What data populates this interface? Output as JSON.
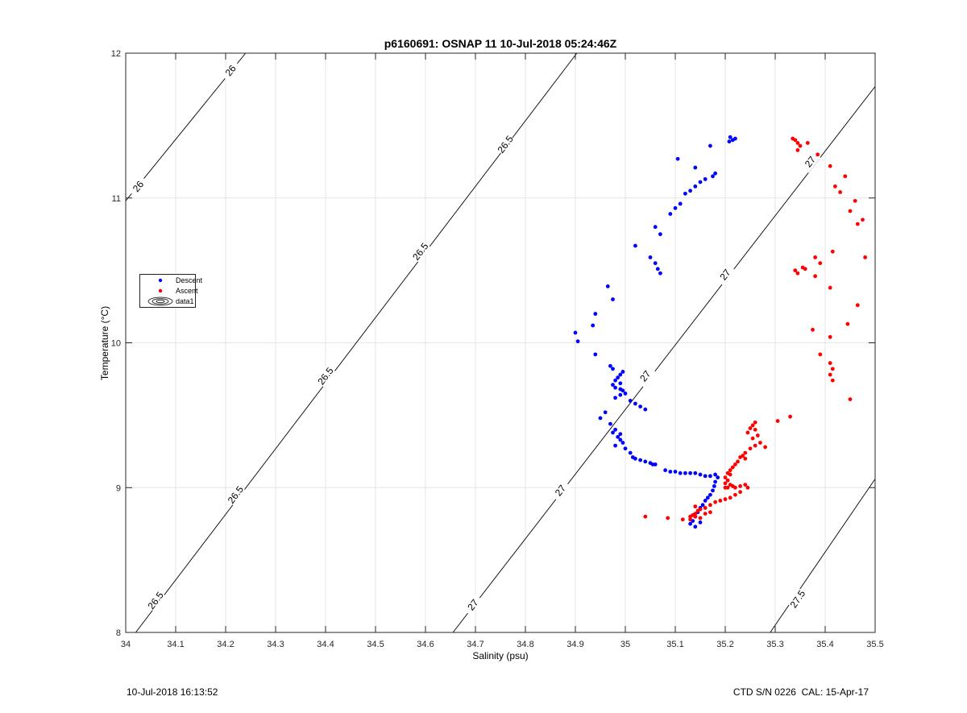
{
  "chart_data": {
    "type": "scatter",
    "title": "p6160691: OSNAP 11 10-Jul-2018 05:24:46Z",
    "xlabel": "Salinity (psu)",
    "ylabel": "Temperature (°C)",
    "xlim": [
      34,
      35.5
    ],
    "ylim": [
      8,
      12
    ],
    "xticks": [
      "34",
      "34.1",
      "34.2",
      "34.3",
      "34.4",
      "34.5",
      "34.6",
      "34.7",
      "34.8",
      "34.9",
      "35",
      "35.1",
      "35.2",
      "35.3",
      "35.4",
      "35.5"
    ],
    "yticks": [
      "8",
      "9",
      "10",
      "11",
      "12"
    ],
    "grid": true,
    "legend_placement": "middle-left",
    "colors": {
      "descent": "#0000ff",
      "ascent": "#ff0000",
      "contour": "#000000"
    },
    "legend": [
      "Descent",
      "Ascent",
      "data1"
    ],
    "contours": [
      {
        "label": "26",
        "points": [
          [
            34.0,
            10.98
          ],
          [
            34.24,
            12.0
          ]
        ],
        "labels_at": [
          [
            34.025,
            11.08
          ],
          [
            34.21,
            11.88
          ]
        ]
      },
      {
        "label": "26.5",
        "points": [
          [
            34.02,
            8.0
          ],
          [
            34.903,
            12.0
          ]
        ],
        "labels_at": [
          [
            34.06,
            8.22
          ],
          [
            34.22,
            8.95
          ],
          [
            34.4,
            9.77
          ],
          [
            34.59,
            10.63
          ],
          [
            34.76,
            11.37
          ]
        ]
      },
      {
        "label": "27",
        "points": [
          [
            34.655,
            8.0
          ],
          [
            35.5,
            11.77
          ]
        ],
        "labels_at": [
          [
            34.695,
            8.19
          ],
          [
            34.87,
            8.98
          ],
          [
            35.04,
            9.77
          ],
          [
            35.2,
            10.47
          ],
          [
            35.37,
            11.25
          ]
        ]
      },
      {
        "label": "27.5",
        "points": [
          [
            35.29,
            8.0
          ],
          [
            35.5,
            9.06
          ]
        ],
        "labels_at": [
          [
            35.345,
            8.23
          ]
        ]
      }
    ],
    "series": [
      {
        "name": "Descent",
        "points": [
          [
            35.21,
            11.42
          ],
          [
            35.22,
            11.41
          ],
          [
            35.215,
            11.4
          ],
          [
            35.208,
            11.39
          ],
          [
            35.105,
            11.27
          ],
          [
            35.17,
            11.36
          ],
          [
            35.14,
            11.21
          ],
          [
            35.18,
            11.17
          ],
          [
            35.175,
            11.15
          ],
          [
            35.16,
            11.13
          ],
          [
            35.15,
            11.11
          ],
          [
            35.14,
            11.08
          ],
          [
            35.13,
            11.05
          ],
          [
            35.12,
            11.03
          ],
          [
            35.11,
            10.96
          ],
          [
            35.1,
            10.93
          ],
          [
            35.09,
            10.89
          ],
          [
            35.06,
            10.8
          ],
          [
            35.07,
            10.75
          ],
          [
            35.02,
            10.67
          ],
          [
            35.05,
            10.59
          ],
          [
            35.06,
            10.55
          ],
          [
            35.065,
            10.51
          ],
          [
            35.07,
            10.48
          ],
          [
            34.965,
            10.39
          ],
          [
            34.975,
            10.3
          ],
          [
            34.94,
            10.2
          ],
          [
            34.935,
            10.12
          ],
          [
            34.9,
            10.07
          ],
          [
            34.905,
            10.01
          ],
          [
            34.94,
            9.92
          ],
          [
            34.97,
            9.84
          ],
          [
            34.975,
            9.82
          ],
          [
            34.995,
            9.8
          ],
          [
            34.99,
            9.78
          ],
          [
            34.985,
            9.76
          ],
          [
            34.98,
            9.74
          ],
          [
            34.99,
            9.72
          ],
          [
            34.975,
            9.71
          ],
          [
            34.98,
            9.69
          ],
          [
            34.99,
            9.68
          ],
          [
            34.995,
            9.67
          ],
          [
            35.0,
            9.65
          ],
          [
            34.99,
            9.64
          ],
          [
            34.98,
            9.62
          ],
          [
            35.01,
            9.6
          ],
          [
            35.02,
            9.58
          ],
          [
            35.03,
            9.56
          ],
          [
            35.04,
            9.54
          ],
          [
            34.96,
            9.52
          ],
          [
            34.95,
            9.48
          ],
          [
            34.97,
            9.44
          ],
          [
            34.98,
            9.4
          ],
          [
            34.975,
            9.38
          ],
          [
            34.99,
            9.37
          ],
          [
            34.985,
            9.35
          ],
          [
            34.99,
            9.33
          ],
          [
            34.995,
            9.31
          ],
          [
            34.98,
            9.29
          ],
          [
            35.0,
            9.27
          ],
          [
            35.01,
            9.24
          ],
          [
            35.015,
            9.21
          ],
          [
            35.02,
            9.2
          ],
          [
            35.03,
            9.19
          ],
          [
            35.04,
            9.18
          ],
          [
            35.05,
            9.17
          ],
          [
            35.055,
            9.16
          ],
          [
            35.06,
            9.16
          ],
          [
            35.08,
            9.12
          ],
          [
            35.09,
            9.11
          ],
          [
            35.1,
            9.11
          ],
          [
            35.11,
            9.1
          ],
          [
            35.12,
            9.1
          ],
          [
            35.13,
            9.1
          ],
          [
            35.14,
            9.1
          ],
          [
            35.15,
            9.09
          ],
          [
            35.16,
            9.08
          ],
          [
            35.17,
            9.08
          ],
          [
            35.18,
            9.09
          ],
          [
            35.185,
            9.07
          ],
          [
            35.18,
            9.04
          ],
          [
            35.178,
            9.01
          ],
          [
            35.175,
            8.98
          ],
          [
            35.17,
            8.95
          ],
          [
            35.165,
            8.93
          ],
          [
            35.16,
            8.91
          ],
          [
            35.155,
            8.88
          ],
          [
            35.15,
            8.86
          ],
          [
            35.145,
            8.83
          ],
          [
            35.14,
            8.8
          ],
          [
            35.135,
            8.77
          ],
          [
            35.13,
            8.75
          ],
          [
            35.14,
            8.73
          ],
          [
            35.15,
            8.76
          ]
        ]
      },
      {
        "name": "Ascent",
        "points": [
          [
            35.335,
            11.41
          ],
          [
            35.34,
            11.4
          ],
          [
            35.345,
            11.38
          ],
          [
            35.35,
            11.36
          ],
          [
            35.365,
            11.38
          ],
          [
            35.345,
            11.33
          ],
          [
            35.385,
            11.3
          ],
          [
            35.41,
            11.22
          ],
          [
            35.44,
            11.15
          ],
          [
            35.42,
            11.08
          ],
          [
            35.43,
            11.04
          ],
          [
            35.46,
            10.98
          ],
          [
            35.45,
            10.91
          ],
          [
            35.475,
            10.85
          ],
          [
            35.465,
            10.82
          ],
          [
            35.415,
            10.63
          ],
          [
            35.48,
            10.59
          ],
          [
            35.38,
            10.59
          ],
          [
            35.39,
            10.55
          ],
          [
            35.355,
            10.52
          ],
          [
            35.36,
            10.51
          ],
          [
            35.34,
            10.5
          ],
          [
            35.345,
            10.48
          ],
          [
            35.38,
            10.46
          ],
          [
            35.41,
            10.38
          ],
          [
            35.465,
            10.26
          ],
          [
            35.445,
            10.13
          ],
          [
            35.375,
            10.09
          ],
          [
            35.41,
            10.04
          ],
          [
            35.39,
            9.92
          ],
          [
            35.41,
            9.86
          ],
          [
            35.415,
            9.82
          ],
          [
            35.41,
            9.78
          ],
          [
            35.415,
            9.74
          ],
          [
            35.45,
            9.61
          ],
          [
            35.33,
            9.49
          ],
          [
            35.305,
            9.46
          ],
          [
            35.26,
            9.45
          ],
          [
            35.255,
            9.43
          ],
          [
            35.25,
            9.41
          ],
          [
            35.26,
            9.4
          ],
          [
            35.245,
            9.38
          ],
          [
            35.265,
            9.36
          ],
          [
            35.255,
            9.34
          ],
          [
            35.27,
            9.31
          ],
          [
            35.26,
            9.29
          ],
          [
            35.28,
            9.28
          ],
          [
            35.25,
            9.27
          ],
          [
            35.24,
            9.24
          ],
          [
            35.235,
            9.22
          ],
          [
            35.23,
            9.21
          ],
          [
            35.24,
            9.2
          ],
          [
            35.225,
            9.18
          ],
          [
            35.22,
            9.16
          ],
          [
            35.215,
            9.14
          ],
          [
            35.21,
            9.12
          ],
          [
            35.205,
            9.1
          ],
          [
            35.21,
            9.09
          ],
          [
            35.2,
            9.07
          ],
          [
            35.205,
            9.05
          ],
          [
            35.2,
            9.03
          ],
          [
            35.21,
            9.02
          ],
          [
            35.215,
            9.01
          ],
          [
            35.205,
            9.0
          ],
          [
            35.2,
            9.0
          ],
          [
            35.22,
            9.0
          ],
          [
            35.23,
            9.01
          ],
          [
            35.24,
            9.02
          ],
          [
            35.245,
            9.0
          ],
          [
            35.23,
            8.97
          ],
          [
            35.22,
            8.95
          ],
          [
            35.21,
            8.93
          ],
          [
            35.2,
            8.92
          ],
          [
            35.19,
            8.91
          ],
          [
            35.18,
            8.9
          ],
          [
            35.17,
            8.88
          ],
          [
            35.16,
            8.86
          ],
          [
            35.15,
            8.85
          ],
          [
            35.145,
            8.84
          ],
          [
            35.14,
            8.82
          ],
          [
            35.135,
            8.81
          ],
          [
            35.13,
            8.8
          ],
          [
            35.14,
            8.8
          ],
          [
            35.14,
            8.87
          ],
          [
            35.04,
            8.8
          ],
          [
            35.085,
            8.79
          ],
          [
            35.115,
            8.78
          ],
          [
            35.13,
            8.78
          ],
          [
            35.15,
            8.79
          ],
          [
            35.16,
            8.82
          ],
          [
            35.17,
            8.83
          ]
        ]
      }
    ]
  },
  "footer": {
    "left": "10-Jul-2018 16:13:52",
    "right": "CTD S/N 0226  CAL: 15-Apr-17"
  }
}
